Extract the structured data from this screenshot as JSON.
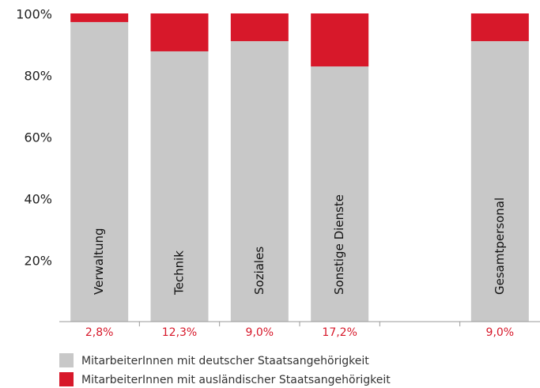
{
  "chart_data": {
    "type": "bar",
    "stacked": true,
    "categories": [
      "Verwaltung",
      "Technik",
      "Soziales",
      "Sonstige Dienste",
      null,
      "Gesamtpersonal"
    ],
    "series": [
      {
        "name": "MitarbeiterInnen mit deutscher Staatsangehörigkeit",
        "color": "#c8c8c8",
        "values": [
          97.2,
          87.7,
          91.0,
          82.8,
          null,
          91.0
        ]
      },
      {
        "name": "MitarbeiterInnen mit ausländischer Staatsangehörigkeit",
        "color": "#d7182a",
        "values": [
          2.8,
          12.3,
          9.0,
          17.2,
          null,
          9.0
        ],
        "value_labels": [
          "2,8%",
          "12,3%",
          "9,0%",
          "17,2%",
          null,
          "9,0%"
        ]
      }
    ],
    "ylim": [
      0,
      100
    ],
    "yticks": [
      {
        "value": 20,
        "label": "20%"
      },
      {
        "value": 40,
        "label": "40%"
      },
      {
        "value": 60,
        "label": "60%"
      },
      {
        "value": 80,
        "label": "80%"
      },
      {
        "value": 100,
        "label": "100%"
      }
    ],
    "legend": "bottom-left"
  }
}
